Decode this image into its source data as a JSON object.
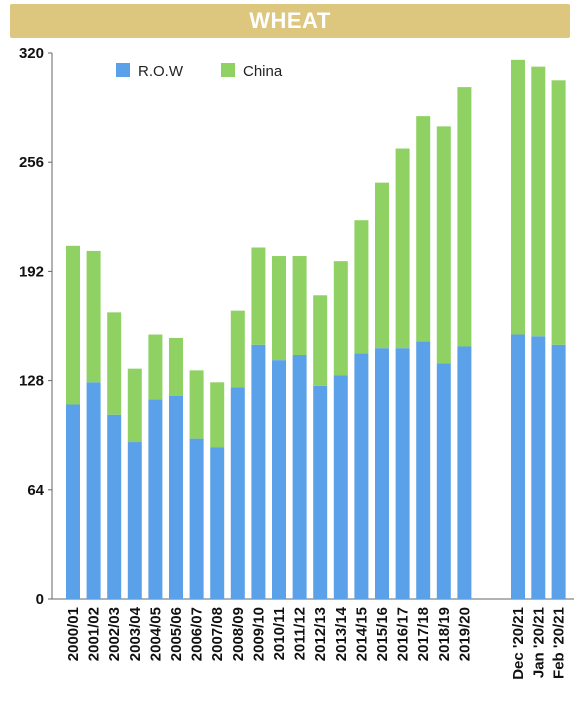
{
  "chart_data": {
    "type": "bar",
    "stacked": true,
    "title": "WHEAT",
    "categories": [
      "2000/01",
      "2001/02",
      "2002/03",
      "2003/04",
      "2004/05",
      "2005/06",
      "2006/07",
      "2007/08",
      "2008/09",
      "2009/10",
      "2010/11",
      "2011/12",
      "2012/13",
      "2013/14",
      "2014/15",
      "2015/16",
      "2016/17",
      "2017/18",
      "2018/19",
      "2019/20",
      "Dec '20/21",
      "Jan '20/21",
      "Feb '20/21"
    ],
    "series": [
      {
        "name": "R.O.W",
        "color": "#5ba1ea",
        "values": [
          114,
          127,
          108,
          92,
          117,
          119,
          94,
          89,
          124,
          149,
          140,
          143,
          125,
          131,
          144,
          147,
          147,
          151,
          138,
          148,
          155,
          154,
          149
        ]
      },
      {
        "name": "China",
        "color": "#8fd163",
        "values": [
          93,
          77,
          60,
          43,
          38,
          34,
          40,
          38,
          45,
          57,
          61,
          58,
          53,
          67,
          78,
          97,
          117,
          132,
          139,
          152,
          161,
          158,
          155
        ]
      }
    ],
    "yticks": [
      0,
      64,
      128,
      192,
      256,
      320
    ],
    "ylim": [
      0,
      320
    ],
    "grid": false,
    "legend_position": "top-left"
  }
}
